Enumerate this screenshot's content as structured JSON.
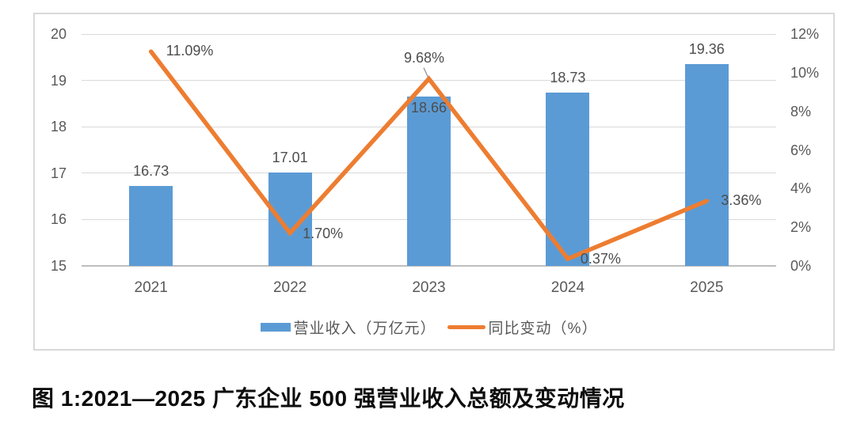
{
  "caption": "图 1:2021—2025 广东企业 500 强营业收入总额及变动情况",
  "chart_data": {
    "type": "combo-bar-line",
    "title": "",
    "categories": [
      "2021",
      "2022",
      "2023",
      "2024",
      "2025"
    ],
    "series": [
      {
        "name": "营业收入（万亿元）",
        "type": "bar",
        "axis": "left",
        "color": "#5B9BD5",
        "values": [
          16.73,
          17.01,
          18.66,
          18.73,
          19.36
        ],
        "labels": [
          "16.73",
          "17.01",
          "18.66",
          "18.73",
          "19.36"
        ]
      },
      {
        "name": "同比变动（%）",
        "type": "line",
        "axis": "right",
        "color": "#ED7D31",
        "values": [
          11.09,
          1.7,
          9.68,
          0.37,
          3.36
        ],
        "labels": [
          "11.09%",
          "1.70%",
          "9.68%",
          "0.37%",
          "3.36%"
        ]
      }
    ],
    "left_axis": {
      "min": 15,
      "max": 20,
      "step": 1,
      "tick_labels": [
        "15",
        "16",
        "17",
        "18",
        "19",
        "20"
      ]
    },
    "right_axis": {
      "min": 0,
      "max": 12,
      "step": 2,
      "tick_labels": [
        "0%",
        "2%",
        "4%",
        "6%",
        "8%",
        "10%",
        "12%"
      ]
    },
    "grid": true,
    "legend_position": "bottom",
    "styles": {
      "grid_color": "#D9D9D9",
      "axis_line_color": "#BFBFBF",
      "tick_color": "#595959",
      "label_color": "#4D4D4D",
      "border_color": "#D9D9D9",
      "leader_color": "#8C8C8C",
      "background": "#FFFFFF"
    }
  }
}
